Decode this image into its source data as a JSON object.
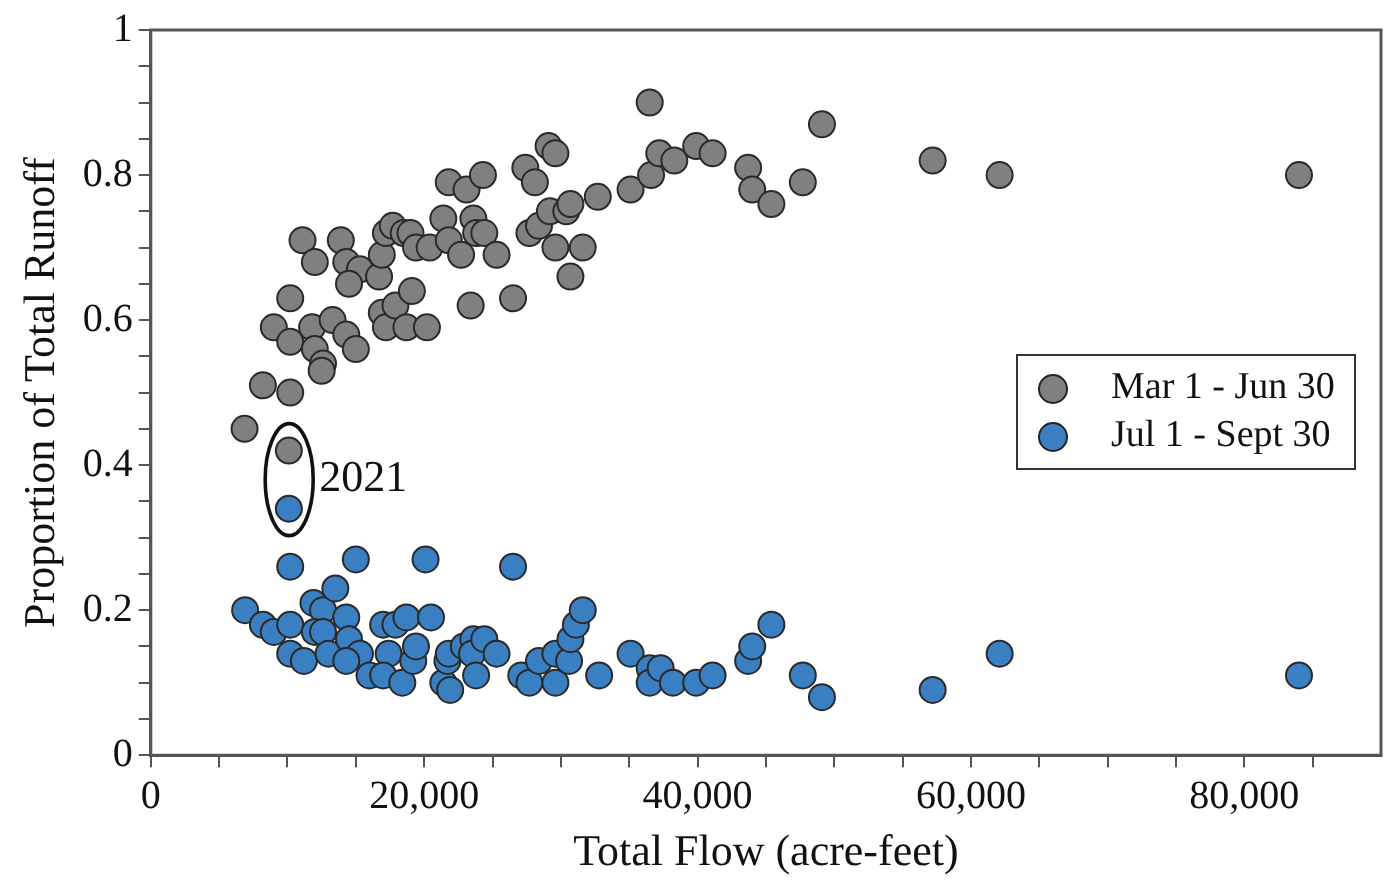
{
  "chart_data": {
    "type": "scatter",
    "xlabel": "Total Flow (acre-feet)",
    "ylabel": "Proportion of Total Runoff",
    "xlim": [
      0,
      90000
    ],
    "xticks": [
      0,
      {
        "value": 5000,
        "label": null
      },
      {
        "value": 10000,
        "label": null
      },
      {
        "value": 15000,
        "label": null
      },
      {
        "value": 20000,
        "label": "20,000"
      },
      {
        "value": 25000,
        "label": null
      },
      {
        "value": 30000,
        "label": null
      },
      {
        "value": 35000,
        "label": null
      },
      {
        "value": 40000,
        "label": "40,000"
      },
      {
        "value": 45000,
        "label": null
      },
      {
        "value": 50000,
        "label": null
      },
      {
        "value": 55000,
        "label": null
      },
      {
        "value": 60000,
        "label": "60,000"
      },
      {
        "value": 65000,
        "label": null
      },
      {
        "value": 70000,
        "label": null
      },
      {
        "value": 75000,
        "label": null
      },
      {
        "value": 80000,
        "label": "80,000"
      },
      {
        "value": 85000,
        "label": null
      }
    ],
    "ylim": [
      0,
      1
    ],
    "yticks": [
      0,
      {
        "value": 0.05,
        "label": null
      },
      {
        "value": 0.1,
        "label": null
      },
      {
        "value": 0.15,
        "label": null
      },
      0.2,
      {
        "value": 0.25,
        "label": null
      },
      {
        "value": 0.3,
        "label": null
      },
      {
        "value": 0.35,
        "label": null
      },
      0.4,
      {
        "value": 0.45,
        "label": null
      },
      {
        "value": 0.5,
        "label": null
      },
      {
        "value": 0.55,
        "label": null
      },
      0.6,
      {
        "value": 0.65,
        "label": null
      },
      {
        "value": 0.7,
        "label": null
      },
      {
        "value": 0.75,
        "label": null
      },
      0.8,
      {
        "value": 0.85,
        "label": null
      },
      {
        "value": 0.9,
        "label": null
      },
      {
        "value": 0.95,
        "label": null
      },
      1
    ],
    "grid": false,
    "legend": "right",
    "marker": "circle",
    "annotations": [
      "2021"
    ],
    "series": [
      {
        "name": "Mar 1 - Jun 30",
        "color": "#808080",
        "x": [
          6860,
          8200,
          10200,
          10100,
          9000,
          10200,
          10200,
          11100,
          12000,
          11800,
          12000,
          12600,
          12500,
          13300,
          14300,
          15000,
          13900,
          14300,
          15300,
          14500,
          16700,
          16900,
          17200,
          17700,
          18500,
          19000,
          19400,
          16900,
          17200,
          17900,
          18700,
          19100,
          20200,
          20400,
          21400,
          21800,
          21800,
          22700,
          23100,
          23400,
          23600,
          23800,
          24400,
          24300,
          25300,
          26500,
          27400,
          28100,
          27700,
          28400,
          29100,
          29600,
          29200,
          29600,
          30400,
          30700,
          30700,
          31600,
          32700,
          35100,
          36600,
          37200,
          38300,
          36500,
          39900,
          41100,
          43700,
          44000,
          45400,
          47700,
          49100,
          57200,
          62100,
          84000
        ],
        "values": [
          0.45,
          0.51,
          0.5,
          0.42,
          0.59,
          0.57,
          0.63,
          0.71,
          0.68,
          0.59,
          0.56,
          0.54,
          0.53,
          0.6,
          0.58,
          0.56,
          0.71,
          0.68,
          0.67,
          0.65,
          0.66,
          0.69,
          0.72,
          0.73,
          0.72,
          0.72,
          0.7,
          0.61,
          0.59,
          0.62,
          0.59,
          0.64,
          0.59,
          0.7,
          0.74,
          0.71,
          0.79,
          0.69,
          0.78,
          0.62,
          0.74,
          0.72,
          0.72,
          0.8,
          0.69,
          0.63,
          0.81,
          0.79,
          0.72,
          0.73,
          0.84,
          0.83,
          0.75,
          0.7,
          0.75,
          0.76,
          0.66,
          0.7,
          0.77,
          0.78,
          0.8,
          0.83,
          0.82,
          0.9,
          0.84,
          0.83,
          0.81,
          0.78,
          0.76,
          0.79,
          0.87,
          0.82,
          0.8,
          0.8
        ]
      },
      {
        "name": "Jul 1 - Sept 30",
        "color": "#3a7fc1",
        "x": [
          10100,
          10200,
          15000,
          20100,
          26500,
          6900,
          8200,
          9000,
          10200,
          10200,
          11200,
          11900,
          12600,
          13500,
          12000,
          12600,
          13000,
          14300,
          14500,
          15300,
          14300,
          16000,
          17000,
          17400,
          17900,
          18700,
          17000,
          18400,
          19200,
          19400,
          20500,
          21400,
          21700,
          21900,
          21800,
          22900,
          23600,
          23500,
          23800,
          24400,
          25300,
          27100,
          27700,
          28400,
          29600,
          29600,
          30600,
          30700,
          31100,
          31600,
          32800,
          35100,
          36500,
          36500,
          37300,
          38200,
          39900,
          41100,
          43700,
          44000,
          45400,
          47700,
          49100,
          57200,
          62100,
          84000
        ],
        "values": [
          0.34,
          0.26,
          0.27,
          0.27,
          0.26,
          0.2,
          0.18,
          0.17,
          0.18,
          0.14,
          0.13,
          0.21,
          0.2,
          0.23,
          0.17,
          0.17,
          0.14,
          0.19,
          0.16,
          0.14,
          0.13,
          0.11,
          0.18,
          0.14,
          0.18,
          0.19,
          0.11,
          0.1,
          0.13,
          0.15,
          0.19,
          0.1,
          0.13,
          0.09,
          0.14,
          0.15,
          0.16,
          0.14,
          0.11,
          0.16,
          0.14,
          0.11,
          0.1,
          0.13,
          0.14,
          0.1,
          0.13,
          0.16,
          0.18,
          0.2,
          0.11,
          0.14,
          0.12,
          0.1,
          0.12,
          0.1,
          0.1,
          0.11,
          0.13,
          0.15,
          0.18,
          0.11,
          0.08,
          0.09,
          0.14,
          0.11
        ]
      }
    ]
  }
}
